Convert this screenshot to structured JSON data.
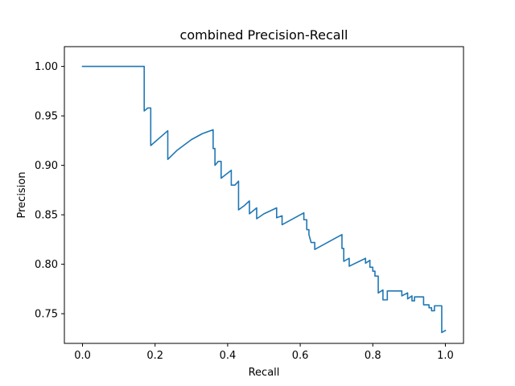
{
  "chart_data": {
    "type": "line",
    "title": "combined Precision-Recall",
    "xlabel": "Recall",
    "ylabel": "Precision",
    "xlim": [
      -0.05,
      1.05
    ],
    "ylim": [
      0.72,
      1.02
    ],
    "xticks": [
      0.0,
      0.2,
      0.4,
      0.6,
      0.8,
      1.0
    ],
    "xtick_labels": [
      "0.0",
      "0.2",
      "0.4",
      "0.6",
      "0.8",
      "1.0"
    ],
    "yticks": [
      0.75,
      0.8,
      0.85,
      0.9,
      0.95,
      1.0
    ],
    "ytick_labels": [
      "0.75",
      "0.80",
      "0.85",
      "0.90",
      "0.95",
      "1.00"
    ],
    "grid": false,
    "line_color": "#1f77b4",
    "series": [
      {
        "x": [
          0.0,
          0.17,
          0.17,
          0.18,
          0.188,
          0.188,
          0.235,
          0.235,
          0.26,
          0.3,
          0.33,
          0.36,
          0.36,
          0.365,
          0.365,
          0.374,
          0.382,
          0.382,
          0.41,
          0.41,
          0.42,
          0.43,
          0.43,
          0.445,
          0.46,
          0.46,
          0.48,
          0.48,
          0.5,
          0.535,
          0.535,
          0.55,
          0.55,
          0.61,
          0.61,
          0.618,
          0.618,
          0.624,
          0.624,
          0.63,
          0.64,
          0.64,
          0.715,
          0.715,
          0.72,
          0.72,
          0.735,
          0.735,
          0.78,
          0.78,
          0.792,
          0.792,
          0.8,
          0.8,
          0.806,
          0.806,
          0.815,
          0.815,
          0.828,
          0.828,
          0.84,
          0.84,
          0.88,
          0.88,
          0.896,
          0.896,
          0.908,
          0.908,
          0.915,
          0.915,
          0.94,
          0.94,
          0.955,
          0.955,
          0.962,
          0.962,
          0.97,
          0.97,
          0.99,
          0.99,
          1.0
        ],
        "y": [
          1.0,
          1.0,
          0.955,
          0.958,
          0.958,
          0.92,
          0.935,
          0.906,
          0.915,
          0.926,
          0.932,
          0.936,
          0.917,
          0.917,
          0.9,
          0.904,
          0.904,
          0.887,
          0.895,
          0.88,
          0.88,
          0.884,
          0.855,
          0.859,
          0.864,
          0.851,
          0.857,
          0.846,
          0.851,
          0.857,
          0.847,
          0.849,
          0.84,
          0.852,
          0.845,
          0.845,
          0.835,
          0.835,
          0.83,
          0.822,
          0.822,
          0.815,
          0.83,
          0.816,
          0.816,
          0.803,
          0.806,
          0.798,
          0.806,
          0.801,
          0.804,
          0.797,
          0.797,
          0.793,
          0.793,
          0.788,
          0.788,
          0.771,
          0.774,
          0.764,
          0.764,
          0.773,
          0.773,
          0.768,
          0.771,
          0.765,
          0.768,
          0.763,
          0.763,
          0.767,
          0.767,
          0.759,
          0.759,
          0.756,
          0.756,
          0.753,
          0.753,
          0.758,
          0.758,
          0.731,
          0.733
        ]
      }
    ]
  }
}
